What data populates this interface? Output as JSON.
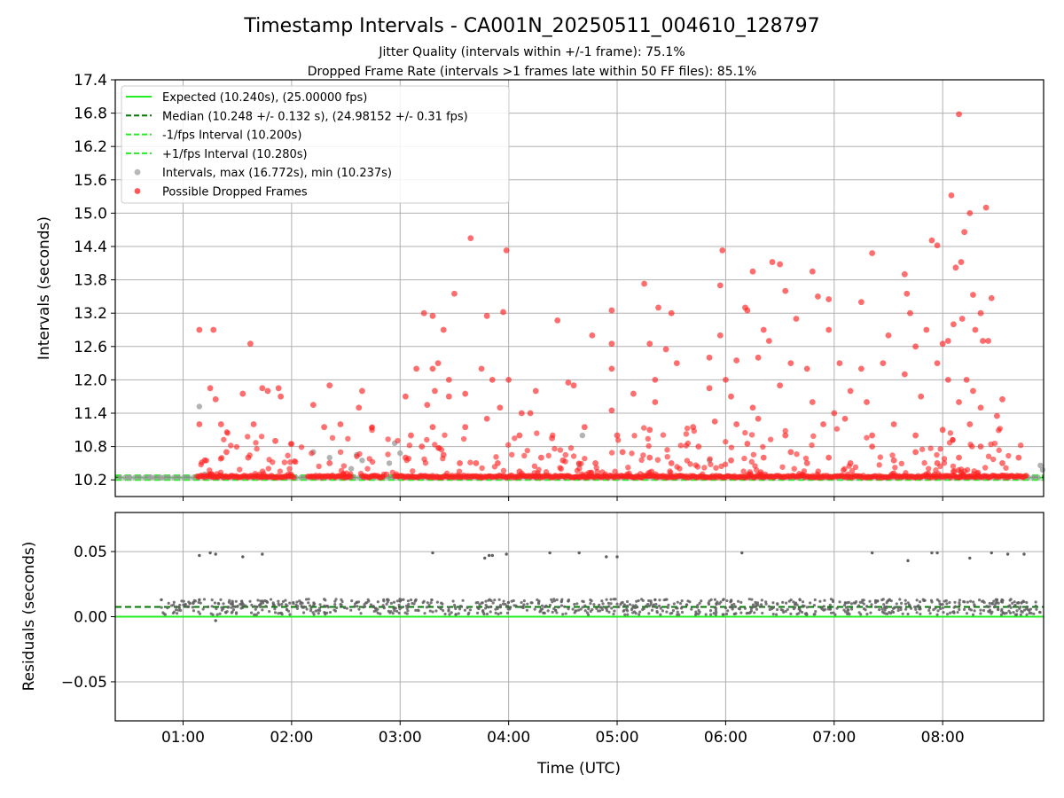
{
  "chart_data": {
    "type": "scatter",
    "title": "Timestamp Intervals - CA001N_20250511_004610_128797",
    "subtitle_lines": [
      "Jitter Quality (intervals within +/-1 frame): 75.1%",
      "Dropped Frame Rate (intervals >1 frames late within 50 FF files): 85.1%"
    ],
    "xlabel": "Time (UTC)",
    "x_ticks": [
      "01:00",
      "02:00",
      "03:00",
      "04:00",
      "05:00",
      "06:00",
      "07:00",
      "08:00"
    ],
    "x_tick_hours": [
      1,
      2,
      3,
      4,
      5,
      6,
      7,
      8
    ],
    "xlim_hours": [
      0.375,
      8.93
    ],
    "grid": true,
    "colors": {
      "expected": "#22ee22",
      "median": "#007700",
      "bounds": "#22ee22",
      "intervals": "#a0a0a0",
      "dropped": "#ff2020",
      "residuals": "#606060"
    },
    "top": {
      "ylabel": "Intervals (seconds)",
      "ylim": [
        9.9,
        17.4
      ],
      "y_ticks": [
        "10.2",
        "10.8",
        "11.4",
        "12.0",
        "12.6",
        "13.2",
        "13.8",
        "14.4",
        "15.0",
        "15.6",
        "16.2",
        "16.8",
        "17.4"
      ],
      "y_tick_values": [
        10.2,
        10.8,
        11.4,
        12.0,
        12.6,
        13.2,
        13.8,
        14.4,
        15.0,
        15.6,
        16.2,
        16.8,
        17.4
      ],
      "expected": 10.24,
      "median": 10.248,
      "lower_bound": 10.2,
      "upper_bound": 10.28,
      "legend_position": "upper-left",
      "legend": [
        {
          "label": "Expected (10.240s), (25.00000 fps)",
          "style": "solid",
          "color": "#22ee22"
        },
        {
          "label": "Median (10.248 +/- 0.132 s), (24.98152 +/- 0.31 fps)",
          "style": "dashed",
          "color": "#007700"
        },
        {
          "label": "-1/fps Interval (10.200s)",
          "style": "dashed",
          "color": "#22ee22"
        },
        {
          "label": "+1/fps Interval (10.280s)",
          "style": "dashed",
          "color": "#22ee22"
        },
        {
          "label": "Intervals, max (16.772s), min (10.237s)",
          "style": "marker",
          "color": "#a0a0a0"
        },
        {
          "label": "Possible Dropped Frames",
          "style": "marker",
          "color": "#ff2020"
        }
      ],
      "baseline_segments": [
        [
          1.13,
          2.02
        ],
        [
          2.15,
          2.55
        ],
        [
          2.65,
          2.85
        ],
        [
          2.95,
          8.78
        ]
      ],
      "gray_points": [
        [
          0.5,
          10.24
        ],
        [
          0.7,
          10.25
        ],
        [
          0.8,
          10.24
        ],
        [
          1.15,
          11.52
        ],
        [
          1.2,
          10.3
        ],
        [
          2.2,
          10.7
        ],
        [
          2.35,
          10.6
        ],
        [
          2.55,
          10.4
        ],
        [
          2.6,
          10.65
        ],
        [
          2.65,
          10.55
        ],
        [
          2.9,
          10.5
        ],
        [
          2.95,
          10.86
        ],
        [
          3.0,
          10.68
        ],
        [
          4.65,
          10.48
        ],
        [
          4.68,
          11.0
        ],
        [
          5.85,
          10.55
        ],
        [
          8.9,
          10.46
        ],
        [
          8.92,
          10.38
        ]
      ],
      "red_points": [
        [
          1.15,
          12.9
        ],
        [
          1.28,
          12.9
        ],
        [
          1.62,
          12.65
        ],
        [
          3.65,
          14.55
        ],
        [
          3.98,
          14.33
        ],
        [
          4.45,
          13.07
        ],
        [
          5.25,
          13.73
        ],
        [
          5.97,
          14.33
        ],
        [
          6.25,
          13.95
        ],
        [
          6.43,
          14.12
        ],
        [
          6.5,
          14.08
        ],
        [
          6.8,
          13.95
        ],
        [
          7.35,
          14.28
        ],
        [
          7.65,
          13.9
        ],
        [
          7.9,
          14.51
        ],
        [
          7.95,
          14.42
        ],
        [
          8.08,
          15.32
        ],
        [
          8.12,
          14.02
        ],
        [
          8.15,
          16.78
        ],
        [
          8.17,
          14.12
        ],
        [
          8.2,
          14.66
        ],
        [
          8.25,
          15.0
        ],
        [
          8.28,
          13.53
        ],
        [
          8.4,
          15.1
        ],
        [
          8.45,
          13.47
        ],
        [
          3.5,
          13.55
        ],
        [
          3.3,
          13.15
        ],
        [
          3.22,
          13.2
        ],
        [
          3.4,
          12.9
        ],
        [
          3.8,
          13.15
        ],
        [
          3.95,
          13.22
        ],
        [
          4.95,
          12.65
        ],
        [
          4.77,
          12.8
        ],
        [
          4.95,
          13.25
        ],
        [
          5.38,
          13.3
        ],
        [
          5.5,
          13.2
        ],
        [
          5.3,
          12.65
        ],
        [
          5.45,
          12.55
        ],
        [
          5.95,
          13.7
        ],
        [
          5.95,
          12.8
        ],
        [
          6.18,
          13.3
        ],
        [
          6.2,
          13.25
        ],
        [
          6.35,
          12.9
        ],
        [
          6.55,
          13.6
        ],
        [
          6.65,
          13.1
        ],
        [
          6.85,
          13.5
        ],
        [
          6.95,
          13.45
        ],
        [
          6.95,
          12.9
        ],
        [
          7.25,
          13.4
        ],
        [
          7.5,
          12.8
        ],
        [
          7.67,
          13.55
        ],
        [
          7.7,
          13.2
        ],
        [
          7.75,
          12.6
        ],
        [
          7.85,
          12.9
        ],
        [
          8.0,
          12.65
        ],
        [
          8.05,
          12.7
        ],
        [
          8.1,
          13.0
        ],
        [
          8.18,
          13.1
        ],
        [
          8.3,
          12.9
        ],
        [
          8.35,
          13.2
        ],
        [
          8.37,
          12.7
        ],
        [
          8.42,
          12.7
        ],
        [
          3.15,
          12.2
        ],
        [
          3.3,
          12.2
        ],
        [
          3.35,
          12.3
        ],
        [
          3.45,
          12.0
        ],
        [
          3.75,
          12.2
        ],
        [
          3.85,
          12.0
        ],
        [
          4.0,
          12.0
        ],
        [
          4.55,
          11.95
        ],
        [
          4.95,
          12.2
        ],
        [
          5.35,
          12.0
        ],
        [
          5.55,
          12.3
        ],
        [
          5.85,
          12.4
        ],
        [
          6.0,
          12.0
        ],
        [
          6.1,
          12.35
        ],
        [
          6.3,
          12.4
        ],
        [
          6.4,
          12.7
        ],
        [
          6.6,
          12.3
        ],
        [
          6.75,
          12.2
        ],
        [
          7.05,
          12.3
        ],
        [
          7.25,
          12.2
        ],
        [
          7.45,
          12.3
        ],
        [
          7.65,
          12.1
        ],
        [
          7.95,
          12.3
        ],
        [
          8.05,
          12.0
        ],
        [
          8.22,
          12.0
        ],
        [
          8.28,
          11.8
        ],
        [
          1.25,
          11.85
        ],
        [
          1.3,
          11.65
        ],
        [
          1.55,
          11.75
        ],
        [
          1.73,
          11.85
        ],
        [
          1.78,
          11.8
        ],
        [
          1.88,
          11.85
        ],
        [
          1.9,
          11.7
        ],
        [
          2.2,
          11.55
        ],
        [
          2.35,
          11.9
        ],
        [
          2.65,
          11.8
        ],
        [
          2.62,
          11.5
        ],
        [
          3.05,
          11.7
        ],
        [
          3.25,
          11.55
        ],
        [
          3.32,
          11.8
        ],
        [
          3.45,
          11.7
        ],
        [
          3.6,
          11.75
        ],
        [
          3.92,
          11.5
        ],
        [
          4.12,
          11.4
        ],
        [
          4.25,
          11.8
        ],
        [
          4.6,
          11.9
        ],
        [
          4.95,
          11.45
        ],
        [
          5.15,
          11.75
        ],
        [
          5.35,
          11.6
        ],
        [
          5.85,
          11.85
        ],
        [
          6.05,
          11.7
        ],
        [
          6.25,
          11.5
        ],
        [
          6.5,
          11.9
        ],
        [
          6.8,
          11.6
        ],
        [
          7.0,
          11.4
        ],
        [
          7.15,
          11.8
        ],
        [
          7.3,
          11.6
        ],
        [
          7.8,
          11.7
        ],
        [
          8.15,
          11.6
        ],
        [
          8.35,
          11.5
        ],
        [
          8.55,
          11.65
        ],
        [
          1.15,
          11.2
        ],
        [
          1.35,
          11.2
        ],
        [
          1.65,
          11.2
        ],
        [
          2.3,
          11.15
        ],
        [
          2.45,
          11.2
        ],
        [
          3.1,
          11.0
        ],
        [
          3.3,
          11.15
        ],
        [
          3.6,
          11.15
        ],
        [
          3.8,
          11.3
        ],
        [
          4.1,
          11.0
        ],
        [
          4.2,
          11.4
        ],
        [
          4.4,
          10.95
        ],
        [
          4.7,
          11.15
        ],
        [
          5.0,
          11.0
        ],
        [
          5.3,
          11.1
        ],
        [
          5.7,
          11.15
        ],
        [
          5.9,
          11.25
        ],
        [
          6.1,
          11.2
        ],
        [
          6.3,
          11.3
        ],
        [
          6.55,
          11.0
        ],
        [
          6.9,
          11.2
        ],
        [
          7.1,
          11.3
        ],
        [
          7.35,
          11.0
        ],
        [
          7.55,
          11.2
        ],
        [
          7.75,
          11.0
        ],
        [
          8.0,
          11.1
        ],
        [
          8.25,
          11.2
        ],
        [
          8.5,
          11.35
        ],
        [
          1.2,
          10.55
        ],
        [
          1.4,
          10.7
        ],
        [
          1.6,
          10.6
        ],
        [
          1.85,
          10.9
        ],
        [
          2.35,
          10.5
        ],
        [
          3.05,
          10.6
        ],
        [
          3.2,
          10.8
        ],
        [
          3.4,
          10.65
        ],
        [
          3.55,
          10.5
        ],
        [
          3.7,
          10.5
        ],
        [
          3.9,
          10.5
        ],
        [
          4.1,
          10.35
        ],
        [
          4.3,
          10.6
        ],
        [
          4.5,
          10.55
        ],
        [
          4.8,
          10.5
        ],
        [
          5.05,
          10.7
        ],
        [
          5.3,
          10.6
        ],
        [
          5.5,
          10.5
        ],
        [
          5.75,
          10.8
        ],
        [
          6.05,
          10.55
        ],
        [
          6.2,
          10.85
        ],
        [
          6.35,
          10.6
        ],
        [
          6.6,
          10.7
        ],
        [
          6.75,
          10.5
        ],
        [
          6.95,
          10.6
        ],
        [
          7.15,
          10.5
        ],
        [
          7.35,
          10.8
        ],
        [
          7.55,
          10.55
        ],
        [
          7.75,
          10.7
        ],
        [
          7.95,
          10.5
        ],
        [
          8.15,
          10.6
        ],
        [
          8.35,
          10.8
        ],
        [
          8.55,
          10.5
        ],
        [
          8.7,
          10.6
        ]
      ],
      "labeled_red_note": ""
    },
    "bottom": {
      "ylabel": "Residuals (seconds)",
      "ylim": [
        -0.08,
        0.08
      ],
      "y_ticks": [
        "−0.05",
        "0.00",
        "0.05"
      ],
      "y_tick_values": [
        -0.05,
        0.0,
        0.05
      ],
      "zero_line": 0.0,
      "median_line": 0.0075,
      "outliers": [
        [
          1.15,
          0.047
        ],
        [
          1.25,
          0.049
        ],
        [
          1.3,
          0.048
        ],
        [
          1.55,
          0.046
        ],
        [
          1.73,
          0.048
        ],
        [
          3.3,
          0.049
        ],
        [
          3.78,
          0.045
        ],
        [
          3.82,
          0.047
        ],
        [
          3.85,
          0.047
        ],
        [
          3.98,
          0.048
        ],
        [
          4.38,
          0.049
        ],
        [
          4.65,
          0.049
        ],
        [
          4.9,
          0.046
        ],
        [
          5.0,
          0.046
        ],
        [
          6.15,
          0.049
        ],
        [
          7.35,
          0.049
        ],
        [
          7.68,
          0.043
        ],
        [
          7.9,
          0.049
        ],
        [
          7.95,
          0.049
        ],
        [
          8.25,
          0.045
        ],
        [
          8.45,
          0.049
        ],
        [
          8.6,
          0.048
        ],
        [
          8.75,
          0.048
        ]
      ],
      "low_points": [
        [
          0.8,
          0.013
        ],
        [
          1.15,
          0.013
        ],
        [
          1.3,
          -0.003
        ],
        [
          2.6,
          0.011
        ],
        [
          3.0,
          0.012
        ],
        [
          4.55,
          0.012
        ],
        [
          5.35,
          0.013
        ],
        [
          6.05,
          0.012
        ],
        [
          7.4,
          0.012
        ],
        [
          8.5,
          0.013
        ]
      ]
    }
  }
}
